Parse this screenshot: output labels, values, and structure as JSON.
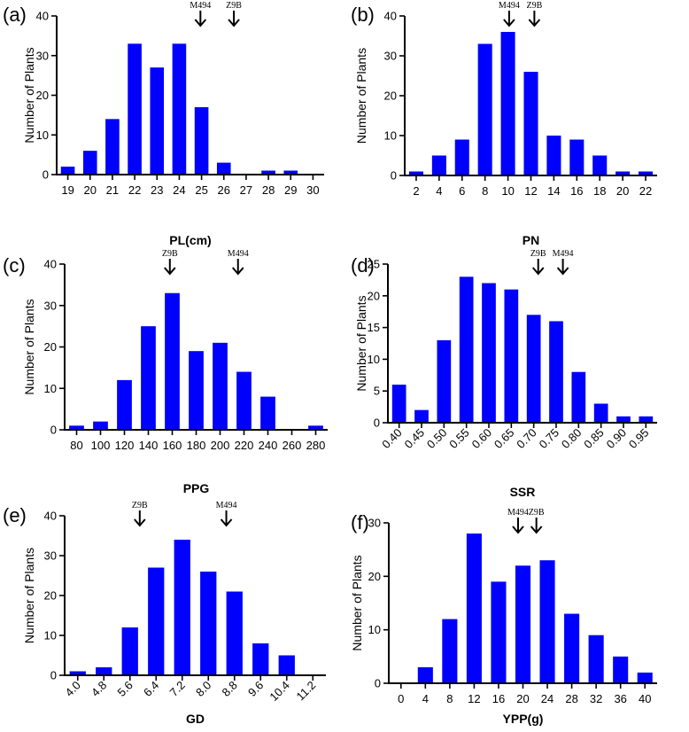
{
  "chart_data": [
    {
      "panel": "(a)",
      "type": "bar",
      "categories": [
        "19",
        "20",
        "21",
        "22",
        "23",
        "24",
        "25",
        "26",
        "27",
        "28",
        "29",
        "30"
      ],
      "values": [
        2,
        6,
        14,
        33,
        27,
        33,
        17,
        3,
        0,
        1,
        1,
        0
      ],
      "xlabel": "PL(cm)",
      "ylabel": "Number of Plants",
      "ylim": [
        0,
        40
      ],
      "yticks": [
        0,
        10,
        20,
        30,
        40
      ],
      "rotate_x_labels": false,
      "markers": [
        {
          "label": "M494",
          "position": 24.95
        },
        {
          "label": "Z9B",
          "position": 26.45
        }
      ]
    },
    {
      "panel": "(b)",
      "type": "bar",
      "categories": [
        "2",
        "4",
        "6",
        "8",
        "10",
        "12",
        "14",
        "16",
        "18",
        "20",
        "22"
      ],
      "values": [
        1,
        5,
        9,
        33,
        36,
        26,
        10,
        9,
        5,
        1,
        1
      ],
      "xlabel": "PN",
      "ylabel": "Number of Plants",
      "ylim": [
        0,
        40
      ],
      "yticks": [
        0,
        10,
        20,
        30,
        40
      ],
      "rotate_x_labels": false,
      "markers": [
        {
          "label": "M494",
          "position": 10.1
        },
        {
          "label": "Z9B",
          "position": 12.3
        }
      ]
    },
    {
      "panel": "(c)",
      "type": "bar",
      "categories": [
        "80",
        "100",
        "120",
        "140",
        "160",
        "180",
        "200",
        "220",
        "240",
        "260",
        "280"
      ],
      "values": [
        1,
        2,
        12,
        25,
        33,
        19,
        21,
        14,
        8,
        0,
        1
      ],
      "xlabel": "PPG",
      "ylabel": "Number of Plants",
      "ylim": [
        0,
        40
      ],
      "yticks": [
        0,
        10,
        20,
        30,
        40
      ],
      "rotate_x_labels": false,
      "markers": [
        {
          "label": "Z9B",
          "position": 158
        },
        {
          "label": "M494",
          "position": 215
        }
      ]
    },
    {
      "panel": "(d)",
      "type": "bar",
      "categories": [
        "0.40",
        "0.45",
        "0.50",
        "0.55",
        "0.60",
        "0.65",
        "0.70",
        "0.75",
        "0.80",
        "0.85",
        "0.90",
        "0.95"
      ],
      "values": [
        6,
        2,
        13,
        23,
        22,
        21,
        17,
        16,
        8,
        3,
        1,
        1
      ],
      "xlabel": "SSR",
      "ylabel": "Number of Plants",
      "ylim": [
        0,
        25
      ],
      "yticks": [
        0,
        5,
        10,
        15,
        20,
        25
      ],
      "rotate_x_labels": true,
      "markers": [
        {
          "label": "Z9B",
          "position": 0.71
        },
        {
          "label": "M494",
          "position": 0.765
        }
      ]
    },
    {
      "panel": "(e)",
      "type": "bar",
      "categories": [
        "4.0",
        "4.8",
        "5.6",
        "6.4",
        "7.2",
        "8.0",
        "8.8",
        "9.6",
        "10.4",
        "11.2"
      ],
      "values": [
        1,
        2,
        12,
        27,
        34,
        26,
        21,
        8,
        5,
        0
      ],
      "xlabel": "GD",
      "ylabel": "Number of Plants",
      "ylim": [
        0,
        40
      ],
      "yticks": [
        0,
        10,
        20,
        30,
        40
      ],
      "rotate_x_labels": true,
      "markers": [
        {
          "label": "Z9B",
          "position": 5.9
        },
        {
          "label": "M494",
          "position": 8.55
        }
      ]
    },
    {
      "panel": "(f)",
      "type": "bar",
      "categories": [
        "0",
        "4",
        "8",
        "12",
        "16",
        "20",
        "24",
        "28",
        "32",
        "36",
        "40"
      ],
      "values": [
        0,
        3,
        12,
        28,
        19,
        22,
        23,
        13,
        9,
        5,
        2
      ],
      "xlabel": "YPP(g)",
      "ylabel": "Number of Plants",
      "ylim": [
        0,
        30
      ],
      "yticks": [
        0,
        10,
        20,
        30
      ],
      "rotate_x_labels": false,
      "markers": [
        {
          "label": "M494",
          "position": 19.2
        },
        {
          "label": "Z9B",
          "position": 22.2
        }
      ]
    }
  ]
}
